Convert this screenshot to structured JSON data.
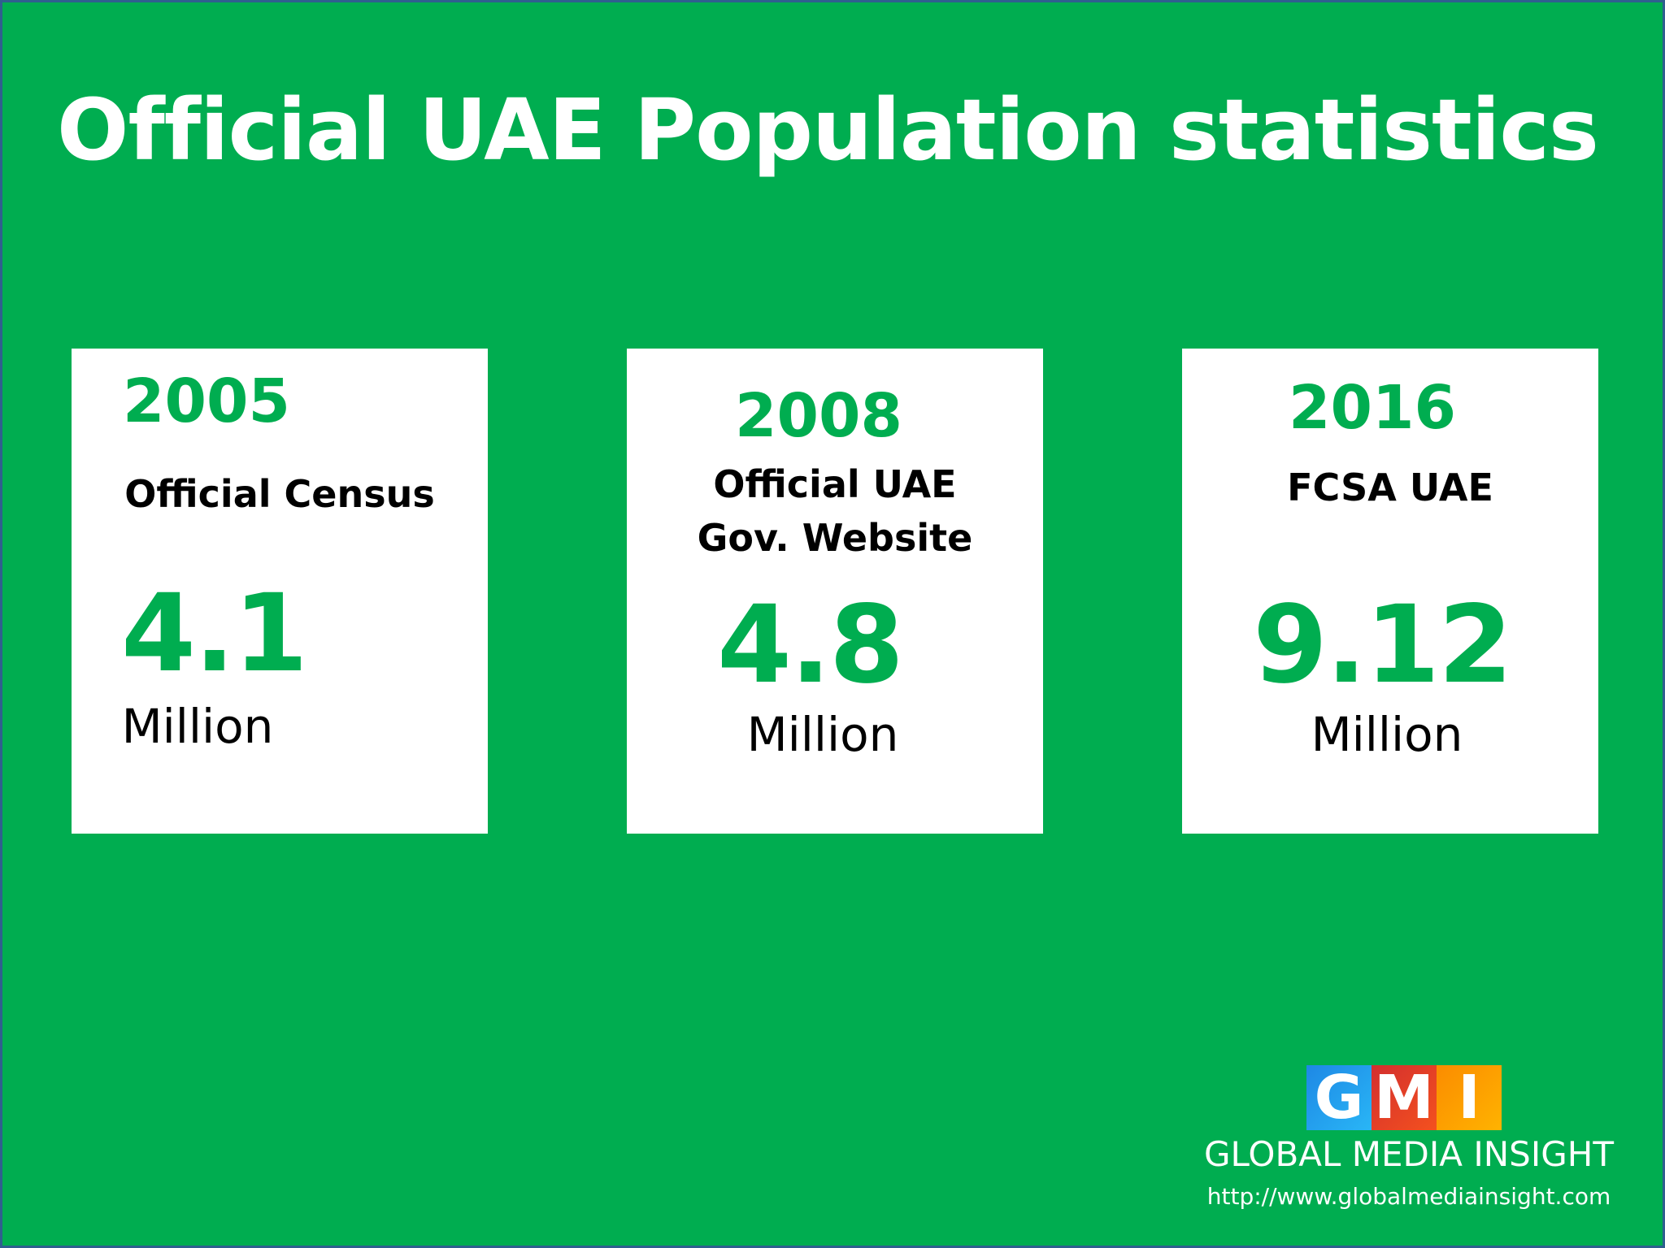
{
  "title": "Official UAE Population statistics",
  "cards": [
    {
      "year": "2005",
      "source": "Official Census",
      "value": "4.1",
      "unit": "Million"
    },
    {
      "year": "2008",
      "source_lines": [
        "Official UAE",
        "Gov. Website"
      ],
      "value": "4.8",
      "unit": "Million"
    },
    {
      "year": "2016",
      "source": "FCSA UAE",
      "value": "9.12",
      "unit": "Million"
    }
  ],
  "logo": {
    "letters": [
      "G",
      "M",
      "I"
    ],
    "colors": [
      "#1e88e5",
      "#d32f2f",
      "#fb8c00"
    ],
    "name": "GLOBAL MEDIA INSIGHT",
    "url": "http://www.globalmediainsight.com"
  },
  "colors": {
    "background": "#00ad50",
    "accent": "#00ad50",
    "card": "#ffffff",
    "border": "#2f5f8f"
  }
}
